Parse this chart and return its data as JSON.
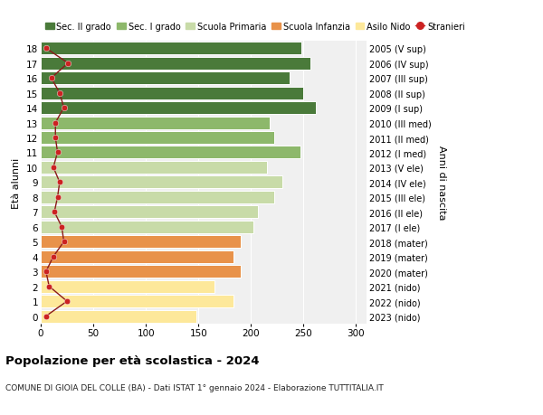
{
  "ages": [
    0,
    1,
    2,
    3,
    4,
    5,
    6,
    7,
    8,
    9,
    10,
    11,
    12,
    13,
    14,
    15,
    16,
    17,
    18
  ],
  "bar_values": [
    148,
    183,
    165,
    190,
    183,
    190,
    202,
    207,
    222,
    230,
    215,
    247,
    222,
    218,
    262,
    250,
    237,
    257,
    248
  ],
  "bar_colors": [
    "#fde89a",
    "#fde89a",
    "#fde89a",
    "#e8924a",
    "#e8924a",
    "#e8924a",
    "#c8dba8",
    "#c8dba8",
    "#c8dba8",
    "#c8dba8",
    "#c8dba8",
    "#8db86b",
    "#8db86b",
    "#8db86b",
    "#4a7a3a",
    "#4a7a3a",
    "#4a7a3a",
    "#4a7a3a",
    "#4a7a3a"
  ],
  "stranieri_values": [
    5,
    25,
    8,
    5,
    12,
    22,
    20,
    13,
    16,
    18,
    12,
    16,
    14,
    14,
    22,
    18,
    10,
    26,
    5
  ],
  "right_labels": [
    "2023 (nido)",
    "2022 (nido)",
    "2021 (nido)",
    "2020 (mater)",
    "2019 (mater)",
    "2018 (mater)",
    "2017 (I ele)",
    "2016 (II ele)",
    "2015 (III ele)",
    "2014 (IV ele)",
    "2013 (V ele)",
    "2012 (I med)",
    "2011 (II med)",
    "2010 (III med)",
    "2009 (I sup)",
    "2008 (II sup)",
    "2007 (III sup)",
    "2006 (IV sup)",
    "2005 (V sup)"
  ],
  "legend_labels": [
    "Sec. II grado",
    "Sec. I grado",
    "Scuola Primaria",
    "Scuola Infanzia",
    "Asilo Nido",
    "Stranieri"
  ],
  "legend_colors": [
    "#4a7a3a",
    "#8db86b",
    "#c8dba8",
    "#e8924a",
    "#fde89a",
    "#c0392b"
  ],
  "ylabel_left": "Età alunni",
  "ylabel_right": "Anni di nascita",
  "title": "Popolazione per età scolastica - 2024",
  "subtitle": "COMUNE DI GIOIA DEL COLLE (BA) - Dati ISTAT 1° gennaio 2024 - Elaborazione TUTTITALIA.IT",
  "xlim": [
    0,
    310
  ],
  "xticks": [
    0,
    50,
    100,
    150,
    200,
    250,
    300
  ],
  "bg_color": "#ffffff",
  "plot_bg_color": "#f0f0f0"
}
